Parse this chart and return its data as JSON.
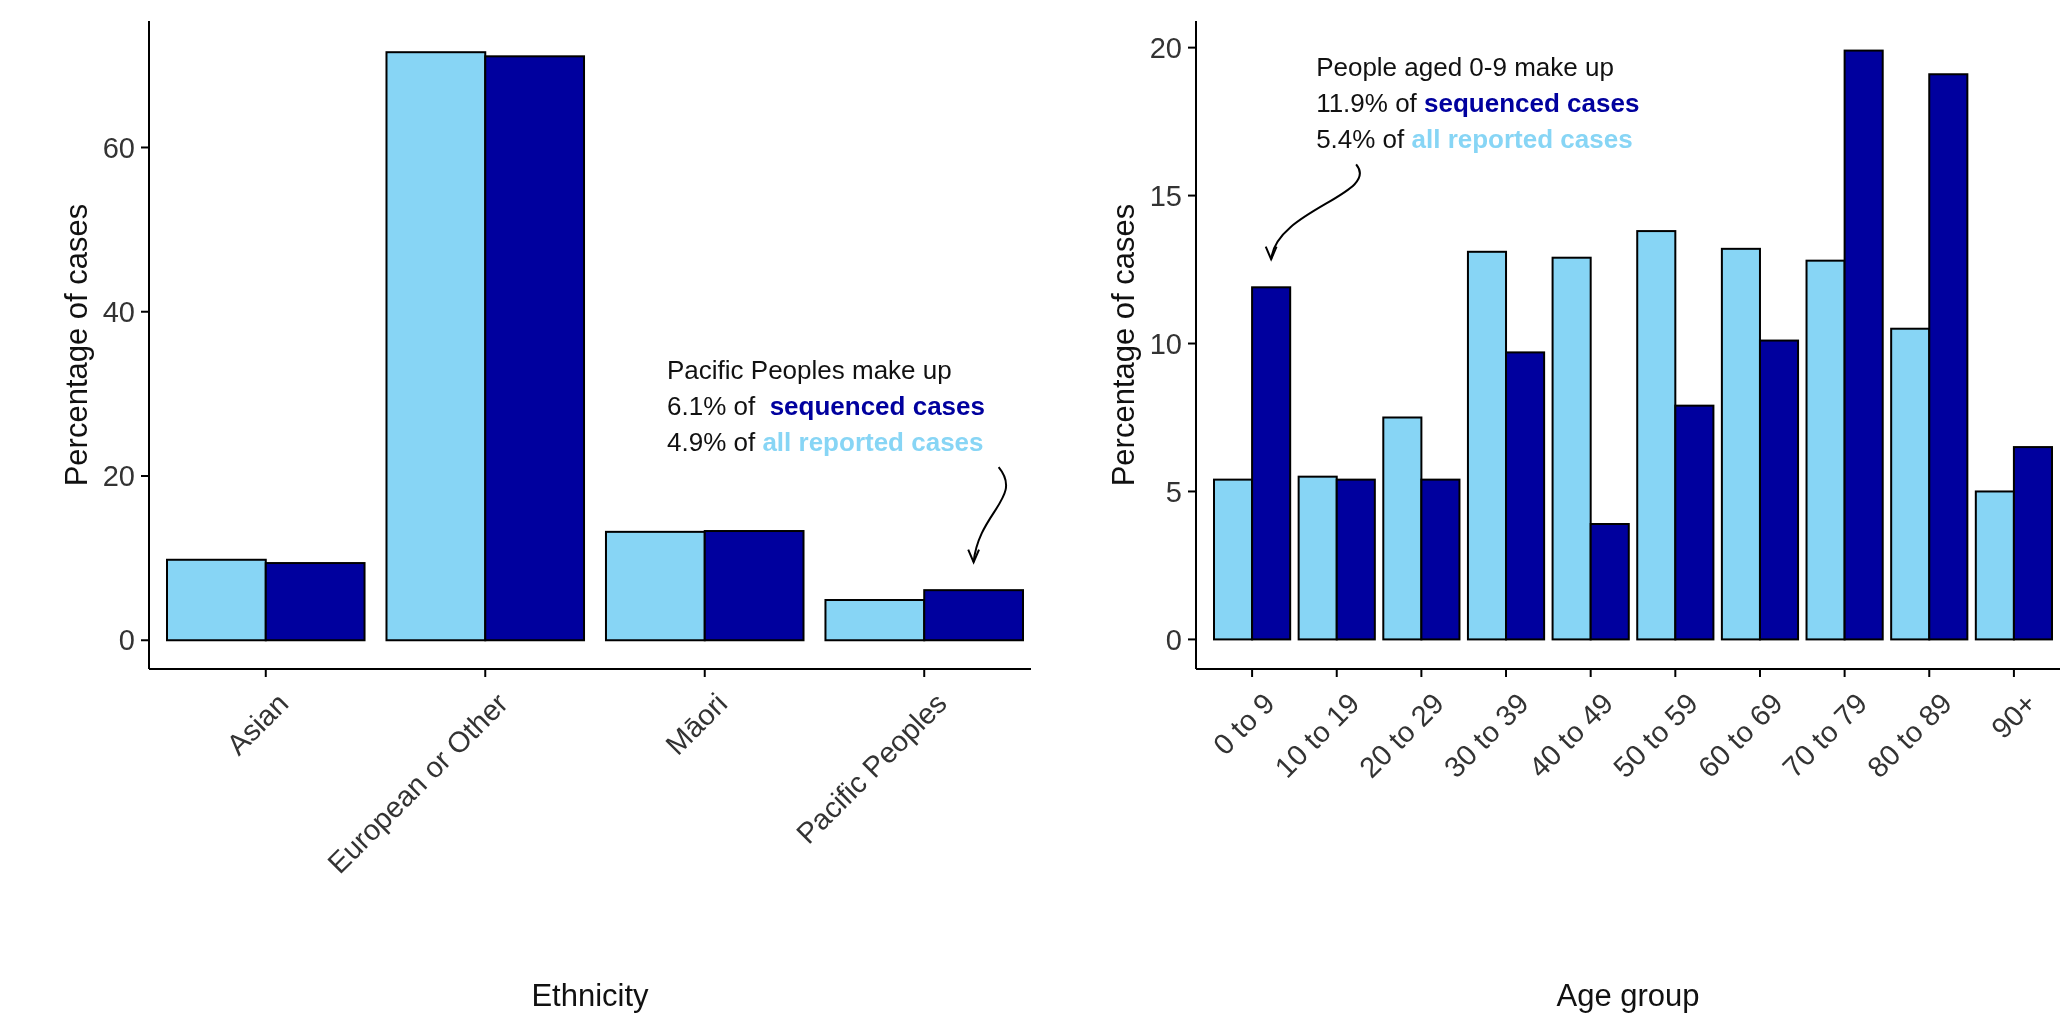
{
  "chart_data": [
    {
      "type": "bar",
      "categories": [
        "Asian",
        "European or Other",
        "Māori",
        "Pacific Peoples"
      ],
      "xlabel": "Ethnicity",
      "ylabel": "Percentage of cases",
      "ylim": [
        -3.5,
        75.4
      ],
      "yticks": [
        0,
        20,
        40,
        60
      ],
      "series": [
        {
          "color": "#87d5f5",
          "values": [
            9.8,
            71.6,
            13.2,
            4.9
          ]
        },
        {
          "color": "#00009e",
          "values": [
            9.4,
            71.1,
            13.3,
            6.1
          ]
        }
      ],
      "annotations": [
        "Pacific Peoples make up\n6.1% of  sequenced cases\n4.9% of all reported cases"
      ]
    },
    {
      "type": "bar",
      "categories": [
        "0 to 9",
        "10 to 19",
        "20 to 29",
        "30 to 39",
        "40 to 49",
        "50 to 59",
        "60 to 69",
        "70 to 79",
        "80 to 89",
        "90+"
      ],
      "xlabel": "Age group",
      "ylabel": "Percentage of cases",
      "ylim": [
        -1,
        20.9
      ],
      "yticks": [
        0,
        5,
        10,
        15,
        20
      ],
      "series": [
        {
          "color": "#87d5f5",
          "values": [
            5.4,
            5.5,
            7.5,
            13.1,
            12.9,
            13.8,
            13.2,
            12.8,
            10.5,
            5.0
          ]
        },
        {
          "color": "#00009e",
          "values": [
            11.9,
            5.4,
            5.4,
            9.7,
            3.9,
            7.9,
            10.1,
            19.9,
            19.1,
            6.5
          ]
        }
      ],
      "annotations": [
        "People aged 0-9 make up\n11.9% of sequenced cases\n5.4% of all reported cases"
      ]
    }
  ]
}
